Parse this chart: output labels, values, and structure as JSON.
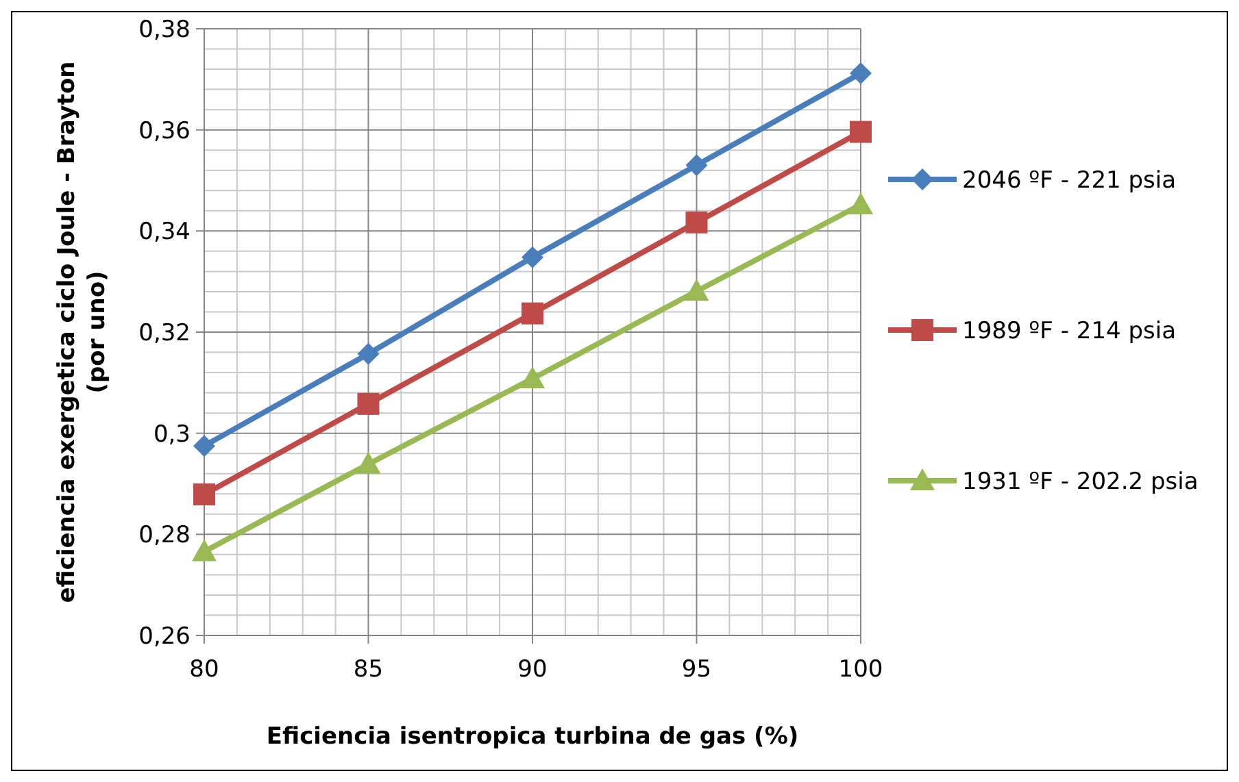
{
  "chart_data": {
    "type": "line",
    "xlabel": "Eficiencia isentropica turbina de gas (%)",
    "ylabel": "eficiencia exergetica ciclo Joule - Brayton (por uno)",
    "x": [
      80,
      85,
      90,
      95,
      100
    ],
    "series": [
      {
        "name": "2046 ºF - 221 psia",
        "color": "#4a7ebb",
        "marker": "diamond",
        "values": [
          0.2975,
          0.3157,
          0.3348,
          0.353,
          0.3712
        ]
      },
      {
        "name": "1989 ºF - 214 psia",
        "color": "#be4b48",
        "marker": "square",
        "values": [
          0.2879,
          0.3058,
          0.3237,
          0.3417,
          0.3596
        ]
      },
      {
        "name": "1931 ºF - 202.2 psia",
        "color": "#98b954",
        "marker": "triangle",
        "values": [
          0.2766,
          0.2939,
          0.3108,
          0.3281,
          0.3452
        ]
      }
    ],
    "xlim": [
      80,
      100
    ],
    "xticks": [
      80,
      85,
      90,
      95,
      100
    ],
    "ylim": [
      0.26,
      0.38
    ],
    "yticks": [
      {
        "value": 0.26,
        "label": "0,26"
      },
      {
        "value": 0.28,
        "label": "0,28"
      },
      {
        "value": 0.3,
        "label": "0,3"
      },
      {
        "value": 0.32,
        "label": "0,32"
      },
      {
        "value": 0.34,
        "label": "0,34"
      },
      {
        "value": 0.36,
        "label": "0,36"
      },
      {
        "value": 0.38,
        "label": "0,38"
      }
    ],
    "grid": true,
    "legend": "right",
    "line_style": "solid"
  }
}
